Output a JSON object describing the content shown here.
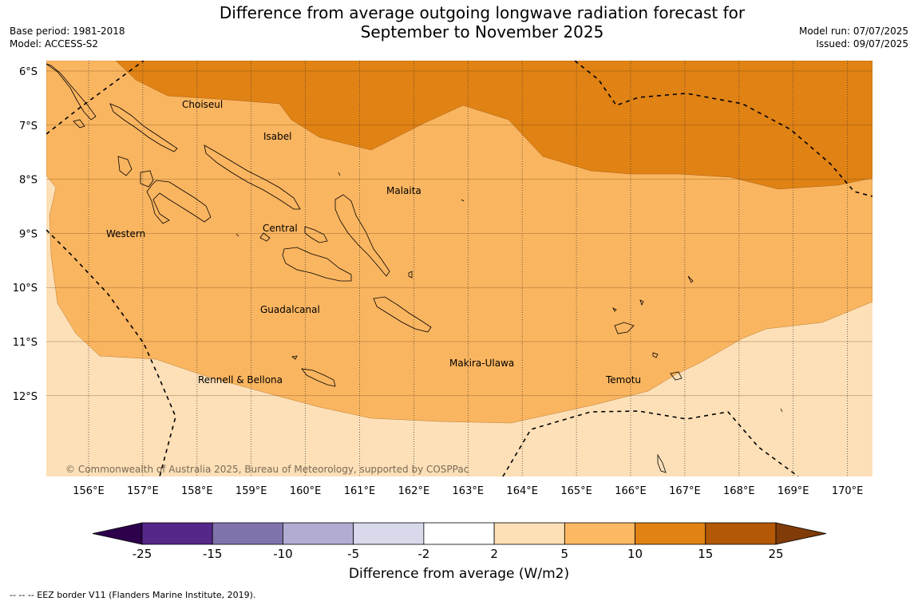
{
  "header": {
    "title_line1": "Difference from average outgoing longwave radiation forecast for",
    "title_line2": "September to November 2025",
    "base_period": "Base period: 1981-2018",
    "model": "Model: ACCESS-S2",
    "model_run": "Model run: 07/07/2025",
    "issued": "Issued: 09/07/2025"
  },
  "map": {
    "lat_labels": [
      "6°S",
      "7°S",
      "8°S",
      "9°S",
      "10°S",
      "11°S",
      "12°S"
    ],
    "lon_labels": [
      "156°E",
      "157°E",
      "158°E",
      "159°E",
      "160°E",
      "161°E",
      "162°E",
      "163°E",
      "164°E",
      "165°E",
      "166°E",
      "167°E",
      "168°E",
      "169°E",
      "170°E"
    ],
    "regions": [
      {
        "name": "Choiseul"
      },
      {
        "name": "Isabel"
      },
      {
        "name": "Malaita"
      },
      {
        "name": "Central"
      },
      {
        "name": "Western"
      },
      {
        "name": "Guadalcanal"
      },
      {
        "name": "Makira-Ulawa"
      },
      {
        "name": "Temotu"
      },
      {
        "name": "Rennell & Bellona"
      }
    ],
    "copyright": "© Commonwealth of Australia 2025, Bureau of Meteorology, supported by COSPPac",
    "fill_colors": {
      "light": "#fde0b8",
      "medium": "#fab560",
      "dark": "#e08214"
    }
  },
  "colorbar": {
    "title": "Difference from average (W/m2)",
    "ticks": [
      "-25",
      "-15",
      "-10",
      "-5",
      "-2",
      "2",
      "5",
      "10",
      "15",
      "25"
    ],
    "colors": [
      "#2d004b",
      "#542788",
      "#8073ac",
      "#b2abd2",
      "#d8daeb",
      "#ffffff",
      "#fee0b6",
      "#fdb863",
      "#e08214",
      "#b35806",
      "#7f3b08"
    ]
  },
  "footer": {
    "eez_note": "--  --  -- EEZ border V11 (Flanders Marine Institute, 2019)."
  }
}
